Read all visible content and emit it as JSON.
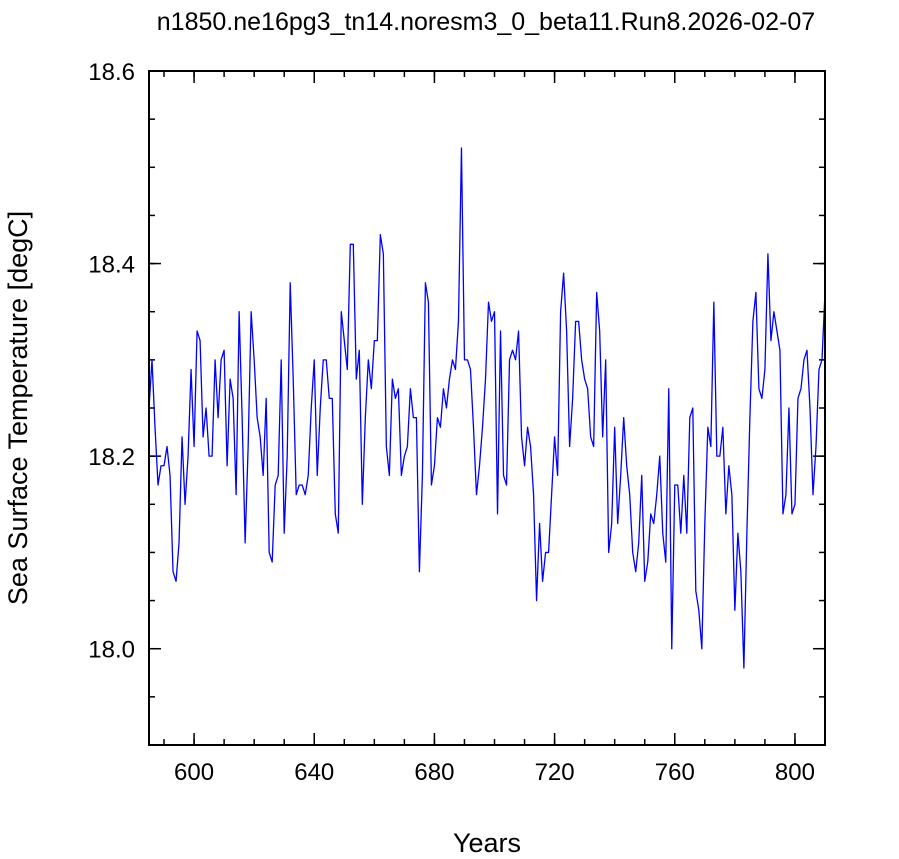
{
  "chart_data": {
    "type": "line",
    "title": "n1850.ne16pg3_tn14.noresm3_0_beta11.Run8.2026-02-07",
    "xlabel": "Years",
    "ylabel": "Sea Surface Temperature [degC]",
    "xlim": [
      585,
      810
    ],
    "ylim": [
      17.9,
      18.6
    ],
    "x_ticks": [
      600,
      640,
      680,
      720,
      760,
      800
    ],
    "x_tick_labels": [
      "600",
      "640",
      "680",
      "720",
      "760",
      "800"
    ],
    "x_minor_step": 10,
    "y_ticks": [
      18.0,
      18.2,
      18.4,
      18.6
    ],
    "y_tick_labels": [
      "18.0",
      "18.2",
      "18.4",
      "18.6"
    ],
    "y_minor_step": 0.05,
    "grid": false,
    "line_color": "#0000ff",
    "series": [
      {
        "x_start": 585,
        "x_step": 1,
        "values": [
          18.25,
          18.3,
          18.23,
          18.17,
          18.19,
          18.19,
          18.21,
          18.18,
          18.08,
          18.07,
          18.11,
          18.22,
          18.15,
          18.2,
          18.29,
          18.21,
          18.33,
          18.32,
          18.22,
          18.25,
          18.2,
          18.2,
          18.3,
          18.24,
          18.3,
          18.31,
          18.19,
          18.28,
          18.26,
          18.16,
          18.35,
          18.24,
          18.11,
          18.21,
          18.35,
          18.3,
          18.24,
          18.22,
          18.18,
          18.26,
          18.1,
          18.09,
          18.17,
          18.18,
          18.3,
          18.12,
          18.2,
          18.38,
          18.28,
          18.16,
          18.17,
          18.17,
          18.16,
          18.18,
          18.25,
          18.3,
          18.18,
          18.25,
          18.3,
          18.3,
          18.26,
          18.26,
          18.14,
          18.12,
          18.35,
          18.32,
          18.29,
          18.42,
          18.42,
          18.28,
          18.31,
          18.15,
          18.24,
          18.3,
          18.27,
          18.32,
          18.32,
          18.43,
          18.41,
          18.21,
          18.18,
          18.28,
          18.26,
          18.27,
          18.18,
          18.2,
          18.21,
          18.27,
          18.24,
          18.24,
          18.08,
          18.18,
          18.38,
          18.36,
          18.17,
          18.19,
          18.24,
          18.23,
          18.27,
          18.25,
          18.28,
          18.3,
          18.29,
          18.34,
          18.52,
          18.3,
          18.3,
          18.29,
          18.23,
          18.16,
          18.19,
          18.23,
          18.28,
          18.36,
          18.34,
          18.35,
          18.14,
          18.33,
          18.18,
          18.17,
          18.3,
          18.31,
          18.3,
          18.33,
          18.22,
          18.19,
          18.23,
          18.21,
          18.16,
          18.05,
          18.13,
          18.07,
          18.1,
          18.1,
          18.16,
          18.22,
          18.18,
          18.35,
          18.39,
          18.33,
          18.21,
          18.26,
          18.34,
          18.34,
          18.3,
          18.28,
          18.27,
          18.22,
          18.21,
          18.37,
          18.33,
          18.22,
          18.3,
          18.1,
          18.13,
          18.23,
          18.13,
          18.18,
          18.24,
          18.19,
          18.16,
          18.1,
          18.08,
          18.11,
          18.18,
          18.07,
          18.09,
          18.14,
          18.13,
          18.16,
          18.2,
          18.12,
          18.09,
          18.27,
          18.0,
          18.17,
          18.17,
          18.12,
          18.18,
          18.12,
          18.24,
          18.25,
          18.06,
          18.04,
          18.0,
          18.13,
          18.23,
          18.21,
          18.36,
          18.2,
          18.2,
          18.23,
          18.14,
          18.19,
          18.16,
          18.04,
          18.12,
          18.08,
          17.98,
          18.12,
          18.24,
          18.34,
          18.37,
          18.27,
          18.26,
          18.29,
          18.41,
          18.32,
          18.35,
          18.33,
          18.31,
          18.14,
          18.16,
          18.25,
          18.14,
          18.15,
          18.26,
          18.27,
          18.3,
          18.31,
          18.25,
          18.16,
          18.21,
          18.29,
          18.3,
          18.37
        ]
      }
    ]
  }
}
